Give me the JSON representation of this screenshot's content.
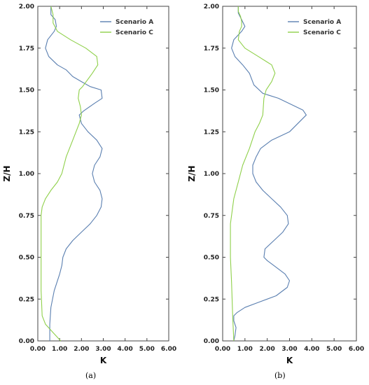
{
  "colors": {
    "scenario_a": "#5a7fb0",
    "scenario_c": "#8fd04a",
    "frame": "#444444"
  },
  "chart_data": [
    {
      "type": "line",
      "panel_label": "(a)",
      "xlabel": "K",
      "ylabel": "Z/H",
      "xlim": [
        0,
        6
      ],
      "ylim": [
        0,
        2
      ],
      "xticks": [
        "0.00",
        "1.00",
        "2.00",
        "3.00",
        "4.00",
        "5.00",
        "6.00"
      ],
      "yticks": [
        "0.00",
        "0.25",
        "0.50",
        "0.75",
        "1.00",
        "1.25",
        "1.50",
        "1.75",
        "2.00"
      ],
      "legend_position": "top-right",
      "series": [
        {
          "name": "Scenario A",
          "x": [
            0.55,
            0.55,
            0.6,
            0.75,
            1.0,
            1.1,
            1.15,
            1.3,
            1.6,
            2.0,
            2.4,
            2.7,
            2.9,
            2.95,
            2.85,
            2.6,
            2.5,
            2.6,
            2.85,
            2.95,
            2.7,
            2.3,
            2.0,
            1.9,
            2.1,
            2.6,
            2.95,
            2.9,
            2.4,
            2.0,
            1.6,
            1.3,
            0.9,
            0.5,
            0.35,
            0.45,
            0.75,
            0.85,
            0.8,
            0.6,
            0.6
          ],
          "y": [
            0.0,
            0.1,
            0.2,
            0.3,
            0.4,
            0.45,
            0.5,
            0.55,
            0.6,
            0.65,
            0.7,
            0.75,
            0.8,
            0.85,
            0.9,
            0.95,
            1.0,
            1.05,
            1.1,
            1.15,
            1.2,
            1.25,
            1.3,
            1.35,
            1.375,
            1.42,
            1.45,
            1.5,
            1.52,
            1.55,
            1.58,
            1.62,
            1.65,
            1.7,
            1.75,
            1.8,
            1.85,
            1.88,
            1.92,
            1.95,
            2.0
          ]
        },
        {
          "name": "Scenario C",
          "x": [
            1.05,
            0.7,
            0.35,
            0.2,
            0.15,
            0.15,
            0.15,
            0.15,
            0.2,
            0.35,
            0.6,
            0.9,
            1.1,
            1.2,
            1.3,
            1.6,
            1.9,
            2.0,
            1.95,
            1.85,
            1.9,
            2.05,
            2.5,
            2.75,
            2.7,
            2.2,
            1.5,
            0.9,
            0.7,
            0.7,
            0.6
          ],
          "y": [
            0.0,
            0.05,
            0.1,
            0.15,
            0.3,
            0.5,
            0.65,
            0.75,
            0.8,
            0.85,
            0.9,
            0.95,
            1.0,
            1.05,
            1.1,
            1.2,
            1.3,
            1.35,
            1.4,
            1.45,
            1.5,
            1.52,
            1.6,
            1.65,
            1.7,
            1.75,
            1.8,
            1.85,
            1.9,
            1.95,
            2.0
          ]
        }
      ]
    },
    {
      "type": "line",
      "panel_label": "(b)",
      "xlabel": "K",
      "ylabel": "Z/H",
      "xlim": [
        0,
        6
      ],
      "ylim": [
        0,
        2
      ],
      "xticks": [
        "0.00",
        "1.00",
        "2.00",
        "3.00",
        "4.00",
        "5.00",
        "6.00"
      ],
      "yticks": [
        "0.00",
        "0.25",
        "0.50",
        "0.75",
        "1.00",
        "1.25",
        "1.50",
        "1.75",
        "2.00"
      ],
      "legend_position": "top-right",
      "series": [
        {
          "name": "Scenario A",
          "x": [
            0.5,
            0.55,
            0.6,
            0.5,
            0.5,
            0.65,
            1.0,
            1.6,
            2.4,
            2.9,
            3.0,
            2.8,
            2.4,
            2.0,
            1.85,
            1.9,
            2.3,
            2.7,
            2.95,
            2.9,
            2.6,
            2.2,
            1.8,
            1.5,
            1.35,
            1.35,
            1.5,
            1.7,
            2.2,
            3.0,
            3.75,
            3.6,
            2.5,
            1.8,
            1.4,
            1.2,
            0.9,
            0.55,
            0.4,
            0.5,
            0.85,
            1.0,
            0.85,
            0.7,
            0.7
          ],
          "y": [
            0.0,
            0.03,
            0.08,
            0.12,
            0.15,
            0.17,
            0.2,
            0.23,
            0.27,
            0.32,
            0.36,
            0.4,
            0.44,
            0.48,
            0.5,
            0.55,
            0.6,
            0.65,
            0.7,
            0.75,
            0.8,
            0.85,
            0.9,
            0.95,
            1.0,
            1.05,
            1.1,
            1.15,
            1.2,
            1.25,
            1.35,
            1.38,
            1.45,
            1.48,
            1.53,
            1.6,
            1.65,
            1.7,
            1.75,
            1.8,
            1.85,
            1.88,
            1.92,
            1.96,
            2.0
          ]
        },
        {
          "name": "Scenario C",
          "x": [
            0.5,
            0.45,
            0.4,
            0.35,
            0.35,
            0.35,
            0.4,
            0.5,
            0.7,
            0.9,
            1.2,
            1.45,
            1.65,
            1.8,
            1.85,
            1.95,
            2.2,
            2.35,
            2.2,
            1.6,
            1.0,
            0.7,
            0.75,
            0.85,
            0.85,
            0.8,
            0.7,
            0.7
          ],
          "y": [
            0.0,
            0.15,
            0.35,
            0.5,
            0.6,
            0.7,
            0.75,
            0.85,
            0.95,
            1.05,
            1.15,
            1.25,
            1.3,
            1.35,
            1.45,
            1.5,
            1.55,
            1.6,
            1.65,
            1.7,
            1.75,
            1.8,
            1.85,
            1.88,
            1.91,
            1.94,
            1.97,
            2.0
          ]
        }
      ]
    }
  ]
}
